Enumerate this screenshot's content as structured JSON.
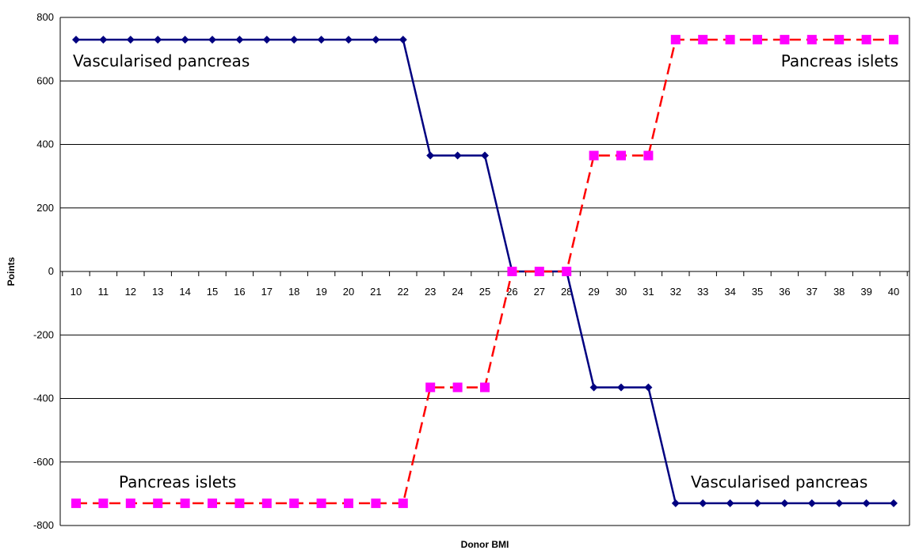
{
  "chart_data": {
    "type": "line",
    "title": "",
    "xlabel": "Donor BMI",
    "ylabel": "Points",
    "ylim": [
      -800,
      800
    ],
    "yticks": [
      800,
      600,
      400,
      200,
      0,
      -200,
      -400,
      -600,
      -800
    ],
    "grid": "horizontal",
    "legend": "none",
    "categories": [
      "10",
      "11",
      "12",
      "13",
      "14",
      "15",
      "16",
      "17",
      "18",
      "19",
      "20",
      "21",
      "22",
      "23",
      "24",
      "25",
      "26",
      "27",
      "28",
      "29",
      "30",
      "31",
      "32",
      "33",
      "34",
      "35",
      "36",
      "37",
      "38",
      "39",
      "40"
    ],
    "x": [
      10,
      11,
      12,
      13,
      14,
      15,
      16,
      17,
      18,
      19,
      20,
      21,
      22,
      23,
      24,
      25,
      26,
      27,
      28,
      29,
      30,
      31,
      32,
      33,
      34,
      35,
      36,
      37,
      38,
      39,
      40
    ],
    "series": [
      {
        "color": "#000080",
        "marker": "diamond",
        "line_style": "solid",
        "values": [
          730,
          730,
          730,
          730,
          730,
          730,
          730,
          730,
          730,
          730,
          730,
          730,
          730,
          365,
          365,
          365,
          0,
          0,
          0,
          -365,
          -365,
          -365,
          -730,
          -730,
          -730,
          -730,
          -730,
          -730,
          -730,
          -730,
          -730
        ]
      },
      {
        "color": "#ff0000",
        "marker_color": "#ff00ff",
        "marker": "square",
        "line_style": "dashed",
        "values": [
          -730,
          -730,
          -730,
          -730,
          -730,
          -730,
          -730,
          -730,
          -730,
          -730,
          -730,
          -730,
          -730,
          -365,
          -365,
          -365,
          0,
          0,
          0,
          365,
          365,
          365,
          730,
          730,
          730,
          730,
          730,
          730,
          730,
          730,
          730
        ]
      }
    ],
    "annotations": [
      {
        "text": "Vascularised pancreas",
        "near": "top-left"
      },
      {
        "text": "Pancreas islets",
        "near": "top-right"
      },
      {
        "text": "Pancreas islets",
        "near": "bottom-left"
      },
      {
        "text": "Vascularised pancreas",
        "near": "bottom-right"
      }
    ]
  }
}
